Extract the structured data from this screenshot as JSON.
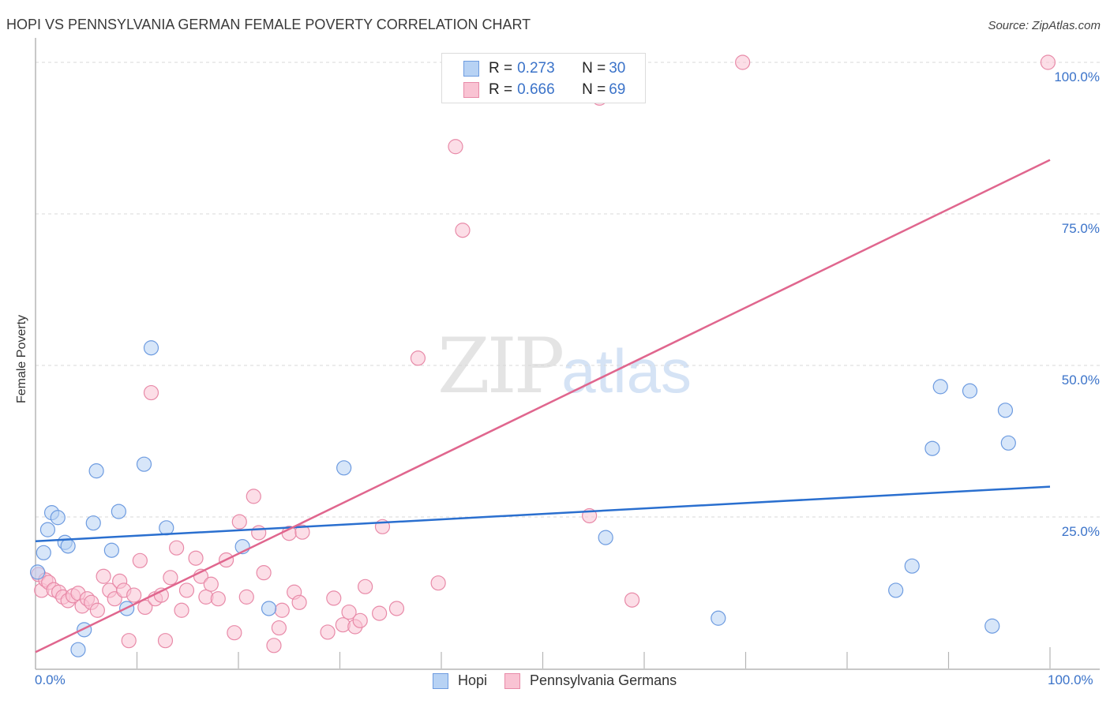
{
  "header": {
    "title": "HOPI VS PENNSYLVANIA GERMAN FEMALE POVERTY CORRELATION CHART",
    "source": "Source: ZipAtlas.com"
  },
  "watermark": {
    "zip": "ZIP",
    "atlas": "atlas"
  },
  "axes": {
    "ylabel": "Female Poverty",
    "x_min_label": "0.0%",
    "x_max_label": "100.0%",
    "y_ticks": [
      "100.0%",
      "75.0%",
      "50.0%",
      "25.0%"
    ]
  },
  "legend": {
    "rows": [
      {
        "r_label": "R = ",
        "r_value": "0.273",
        "n_label": "N = ",
        "n_value": "30"
      },
      {
        "r_label": "R = ",
        "r_value": "0.666",
        "n_label": "N = ",
        "n_value": "69"
      }
    ],
    "series": [
      {
        "name": "Hopi"
      },
      {
        "name": "Pennsylvania Germans"
      }
    ]
  },
  "colors": {
    "hopi_fill": "#b7d2f4",
    "hopi_stroke": "#6d9be0",
    "hopi_line": "#2a6fcf",
    "penn_fill": "#f9c3d3",
    "penn_stroke": "#e88aa8",
    "penn_line": "#e0668e",
    "tick_label": "#3b73c9",
    "grid": "#d9d9d9"
  },
  "chart_data": {
    "type": "scatter",
    "title": "HOPI VS PENNSYLVANIA GERMAN FEMALE POVERTY CORRELATION CHART",
    "xlabel": "",
    "ylabel": "Female Poverty",
    "xlim": [
      0,
      100
    ],
    "ylim": [
      0,
      100
    ],
    "x_tick_labels": [
      "0.0%",
      "100.0%"
    ],
    "y_tick_labels": [
      "25.0%",
      "50.0%",
      "75.0%",
      "100.0%"
    ],
    "grid": "horizontal dashed at 25/50/75/100",
    "legend_position": "top-center (stats) and bottom-center (series)",
    "series": [
      {
        "name": "Hopi",
        "R": 0.273,
        "N": 30,
        "trendline": {
          "x": [
            0,
            100
          ],
          "y": [
            21.0,
            30.0
          ]
        },
        "points": [
          [
            0.2,
            15.9
          ],
          [
            0.8,
            19.1
          ],
          [
            1.2,
            22.9
          ],
          [
            1.6,
            25.7
          ],
          [
            2.2,
            24.9
          ],
          [
            2.9,
            20.8
          ],
          [
            3.2,
            20.2
          ],
          [
            4.2,
            3.1
          ],
          [
            4.8,
            6.4
          ],
          [
            5.7,
            24.0
          ],
          [
            6.0,
            32.6
          ],
          [
            7.5,
            19.5
          ],
          [
            8.2,
            25.9
          ],
          [
            9.0,
            9.9
          ],
          [
            10.7,
            33.7
          ],
          [
            11.4,
            52.9
          ],
          [
            12.9,
            23.2
          ],
          [
            20.4,
            20.1
          ],
          [
            23.0,
            9.9
          ],
          [
            30.4,
            33.1
          ],
          [
            56.2,
            21.6
          ],
          [
            67.3,
            8.3
          ],
          [
            84.8,
            12.9
          ],
          [
            86.4,
            16.9
          ],
          [
            88.4,
            36.3
          ],
          [
            89.2,
            46.5
          ],
          [
            92.1,
            45.8
          ],
          [
            94.3,
            7.0
          ],
          [
            95.6,
            42.6
          ],
          [
            95.9,
            37.2
          ]
        ]
      },
      {
        "name": "Pennsylvania Germans",
        "R": 0.666,
        "N": 69,
        "trendline": {
          "x": [
            0,
            100
          ],
          "y": [
            2.7,
            83.9
          ]
        },
        "points": [
          [
            0.3,
            15.5
          ],
          [
            0.6,
            12.9
          ],
          [
            1.0,
            14.6
          ],
          [
            1.3,
            14.2
          ],
          [
            1.8,
            13.0
          ],
          [
            2.3,
            12.6
          ],
          [
            2.7,
            11.8
          ],
          [
            3.2,
            11.2
          ],
          [
            3.7,
            12.0
          ],
          [
            4.2,
            12.4
          ],
          [
            4.6,
            10.3
          ],
          [
            5.1,
            11.5
          ],
          [
            5.5,
            10.9
          ],
          [
            6.1,
            9.6
          ],
          [
            6.7,
            15.2
          ],
          [
            7.3,
            12.9
          ],
          [
            7.8,
            11.5
          ],
          [
            8.3,
            14.4
          ],
          [
            8.7,
            12.9
          ],
          [
            9.2,
            4.6
          ],
          [
            9.7,
            12.1
          ],
          [
            10.3,
            17.8
          ],
          [
            10.8,
            10.1
          ],
          [
            11.4,
            45.5
          ],
          [
            11.8,
            11.5
          ],
          [
            12.4,
            12.1
          ],
          [
            12.8,
            4.6
          ],
          [
            13.3,
            15.0
          ],
          [
            13.9,
            19.9
          ],
          [
            14.4,
            9.6
          ],
          [
            14.9,
            12.9
          ],
          [
            15.8,
            18.2
          ],
          [
            16.3,
            15.2
          ],
          [
            16.8,
            11.8
          ],
          [
            17.3,
            13.9
          ],
          [
            18.0,
            11.5
          ],
          [
            18.8,
            17.9
          ],
          [
            19.6,
            5.9
          ],
          [
            20.1,
            24.2
          ],
          [
            20.8,
            11.8
          ],
          [
            21.5,
            28.4
          ],
          [
            22.0,
            22.4
          ],
          [
            22.5,
            15.8
          ],
          [
            23.5,
            3.8
          ],
          [
            24.0,
            6.7
          ],
          [
            24.3,
            9.6
          ],
          [
            25.0,
            22.3
          ],
          [
            25.5,
            12.6
          ],
          [
            26.0,
            10.9
          ],
          [
            26.3,
            22.5
          ],
          [
            28.8,
            6.0
          ],
          [
            29.4,
            11.6
          ],
          [
            30.3,
            7.2
          ],
          [
            30.9,
            9.3
          ],
          [
            31.5,
            6.9
          ],
          [
            32.0,
            7.9
          ],
          [
            32.5,
            13.5
          ],
          [
            33.9,
            9.1
          ],
          [
            34.2,
            23.4
          ],
          [
            35.6,
            9.9
          ],
          [
            37.7,
            51.2
          ],
          [
            39.7,
            14.1
          ],
          [
            41.4,
            86.1
          ],
          [
            42.1,
            72.3
          ],
          [
            54.6,
            25.2
          ],
          [
            55.6,
            94.1
          ],
          [
            58.8,
            11.3
          ],
          [
            69.7,
            100.0
          ],
          [
            99.8,
            100.0
          ]
        ]
      }
    ]
  }
}
